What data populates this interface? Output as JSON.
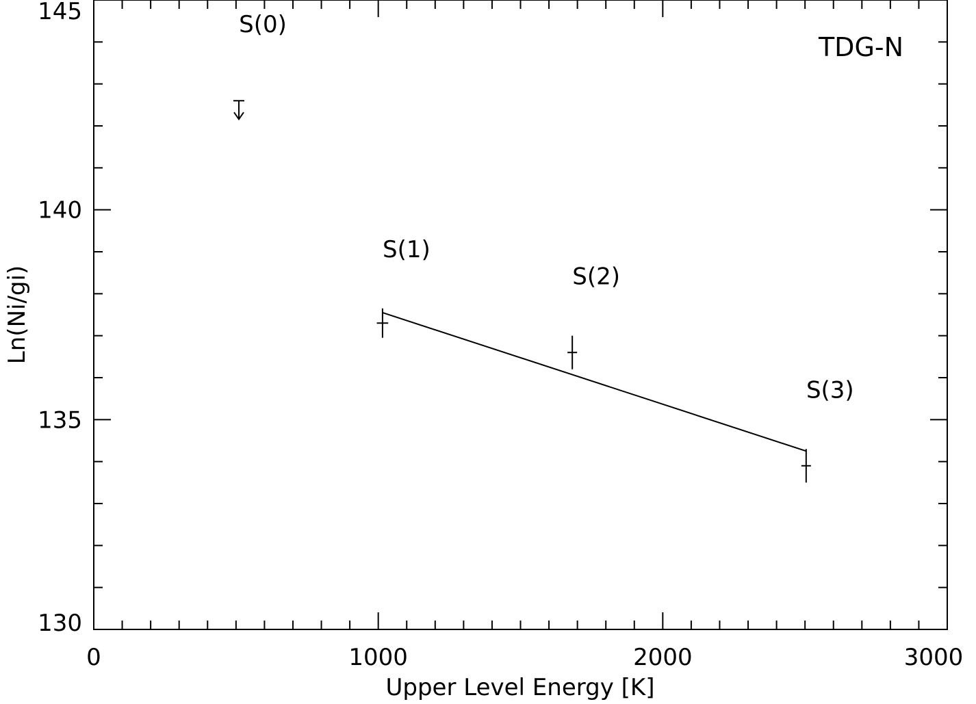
{
  "chart_data": {
    "type": "scatter",
    "panel_label": "TDG-N",
    "xlabel": "Upper Level Energy [K]",
    "ylabel": "Ln(Ni/gi)",
    "xlim": [
      0,
      3000
    ],
    "ylim": [
      130,
      145
    ],
    "x_major_ticks": [
      0,
      1000,
      2000,
      3000
    ],
    "x_tick_labels": [
      "0",
      "1000",
      "2000",
      "3000"
    ],
    "x_minor_step": 100,
    "y_major_ticks": [
      130,
      135,
      140,
      145
    ],
    "y_tick_labels": [
      "130",
      "135",
      "140",
      "145"
    ],
    "y_minor_step": 1,
    "grid": false,
    "legend": "none",
    "points": [
      {
        "label": "S(0)",
        "x": 510,
        "y": 142.6,
        "upper_limit": true
      },
      {
        "label": "S(1)",
        "x": 1015,
        "y": 137.3,
        "yerr": 0.35,
        "xerr": 20
      },
      {
        "label": "S(2)",
        "x": 1682,
        "y": 136.6,
        "yerr": 0.4,
        "xerr": 15
      },
      {
        "label": "S(3)",
        "x": 2504,
        "y": 133.9,
        "yerr": 0.4,
        "xerr": 15
      }
    ],
    "fit_line": {
      "x": [
        1015,
        2504
      ],
      "y": [
        137.55,
        134.25
      ]
    },
    "colors": {
      "ink": "#000000",
      "background": "#ffffff"
    }
  }
}
